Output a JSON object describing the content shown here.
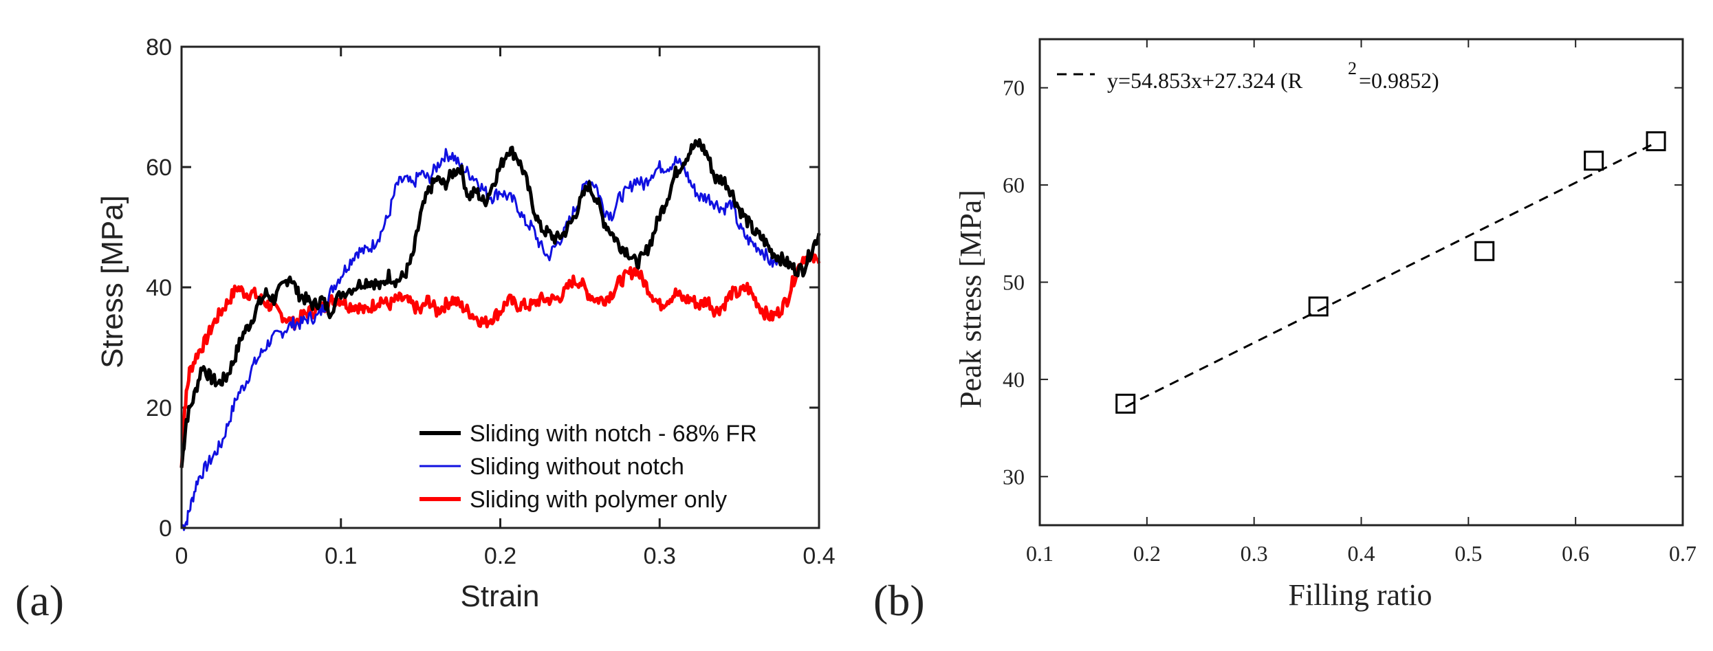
{
  "chart_data": [
    {
      "panel_label": "(a)",
      "type": "line",
      "xlabel": "Strain",
      "ylabel": "Stress [MPa]",
      "xlim": [
        0,
        0.4
      ],
      "ylim": [
        0,
        80
      ],
      "xticks": [
        0,
        0.1,
        0.2,
        0.3,
        0.4
      ],
      "xtick_labels": [
        "0",
        "0.1",
        "0.2",
        "0.3",
        "0.4"
      ],
      "yticks": [
        0,
        20,
        40,
        60,
        80
      ],
      "ytick_labels": [
        "0",
        "20",
        "40",
        "60",
        "80"
      ],
      "grid": false,
      "legend_position": "bottom-right",
      "series": [
        {
          "name": "Sliding with notch - 68% FR",
          "color": "#000000",
          "x": [
            0,
            0.003,
            0.008,
            0.013,
            0.018,
            0.023,
            0.028,
            0.033,
            0.038,
            0.043,
            0.048,
            0.053,
            0.058,
            0.063,
            0.068,
            0.073,
            0.078,
            0.083,
            0.088,
            0.093,
            0.1,
            0.108,
            0.115,
            0.12,
            0.125,
            0.13,
            0.135,
            0.14,
            0.145,
            0.15,
            0.155,
            0.16,
            0.165,
            0.17,
            0.175,
            0.18,
            0.185,
            0.19,
            0.195,
            0.2,
            0.205,
            0.21,
            0.215,
            0.22,
            0.225,
            0.23,
            0.235,
            0.24,
            0.245,
            0.25,
            0.255,
            0.26,
            0.265,
            0.27,
            0.275,
            0.28,
            0.285,
            0.29,
            0.295,
            0.3,
            0.305,
            0.31,
            0.315,
            0.32,
            0.325,
            0.33,
            0.335,
            0.34,
            0.345,
            0.35,
            0.355,
            0.36,
            0.365,
            0.37,
            0.375,
            0.38,
            0.385,
            0.39,
            0.395,
            0.4
          ],
          "y": [
            10,
            18,
            22,
            27,
            25,
            24,
            25,
            28,
            32,
            34,
            37,
            39,
            38,
            40,
            42,
            39,
            38,
            37,
            38,
            36,
            39,
            40,
            41,
            41,
            40,
            42,
            41,
            42,
            45,
            52,
            56,
            58,
            57,
            59,
            60,
            55,
            56,
            54,
            57,
            60,
            63,
            62,
            59,
            54,
            50,
            49,
            48,
            49,
            51,
            54,
            57,
            55,
            51,
            49,
            47,
            46,
            44,
            45,
            48,
            52,
            55,
            59,
            61,
            63,
            64,
            62,
            58,
            58,
            56,
            53,
            51,
            49,
            48,
            46,
            45,
            44,
            43,
            43,
            46,
            49
          ]
        },
        {
          "name": "Sliding without notch",
          "color": "#1010e0",
          "x": [
            0,
            0.003,
            0.006,
            0.01,
            0.015,
            0.02,
            0.025,
            0.03,
            0.035,
            0.04,
            0.045,
            0.05,
            0.055,
            0.06,
            0.065,
            0.07,
            0.075,
            0.08,
            0.085,
            0.09,
            0.095,
            0.1,
            0.105,
            0.11,
            0.115,
            0.12,
            0.125,
            0.13,
            0.135,
            0.14,
            0.145,
            0.15,
            0.155,
            0.16,
            0.165,
            0.17,
            0.175,
            0.18,
            0.185,
            0.19,
            0.195,
            0.2,
            0.205,
            0.21,
            0.215,
            0.22,
            0.225,
            0.23,
            0.235,
            0.24,
            0.245,
            0.25,
            0.255,
            0.26,
            0.265,
            0.27,
            0.275,
            0.28,
            0.285,
            0.29,
            0.295,
            0.3,
            0.305,
            0.31,
            0.315,
            0.32,
            0.325,
            0.33,
            0.335,
            0.34,
            0.345,
            0.35,
            0.355,
            0.36,
            0.365,
            0.37,
            0.375
          ],
          "y": [
            0,
            1,
            4,
            8,
            10,
            12,
            14,
            18,
            22,
            24,
            27,
            29,
            31,
            32,
            33,
            34,
            34,
            35,
            35,
            37,
            40,
            42,
            44,
            46,
            46,
            47,
            49,
            52,
            57,
            58,
            57,
            59,
            58,
            60,
            62,
            62,
            60,
            59,
            58,
            56,
            55,
            56,
            55,
            54,
            51,
            50,
            47,
            45,
            47,
            49,
            52,
            55,
            58,
            57,
            53,
            52,
            55,
            56,
            58,
            57,
            59,
            60,
            60,
            61,
            60,
            57,
            55,
            55,
            54,
            53,
            54,
            50,
            48,
            47,
            46,
            44,
            44
          ]
        },
        {
          "name": "Sliding with polymer only",
          "color": "#ff0000",
          "x": [
            0,
            0.002,
            0.005,
            0.01,
            0.015,
            0.02,
            0.025,
            0.03,
            0.035,
            0.04,
            0.045,
            0.05,
            0.055,
            0.06,
            0.065,
            0.07,
            0.075,
            0.08,
            0.085,
            0.09,
            0.095,
            0.1,
            0.105,
            0.11,
            0.115,
            0.12,
            0.125,
            0.13,
            0.135,
            0.14,
            0.145,
            0.15,
            0.155,
            0.16,
            0.165,
            0.17,
            0.175,
            0.18,
            0.185,
            0.19,
            0.195,
            0.2,
            0.205,
            0.21,
            0.215,
            0.22,
            0.225,
            0.23,
            0.235,
            0.24,
            0.245,
            0.25,
            0.255,
            0.26,
            0.265,
            0.27,
            0.275,
            0.28,
            0.285,
            0.29,
            0.295,
            0.3,
            0.305,
            0.31,
            0.315,
            0.32,
            0.325,
            0.33,
            0.335,
            0.34,
            0.345,
            0.35,
            0.355,
            0.36,
            0.365,
            0.37,
            0.375,
            0.38,
            0.385,
            0.39,
            0.395,
            0.4
          ],
          "y": [
            10,
            20,
            26,
            29,
            31,
            34,
            36,
            38,
            40,
            39,
            39,
            38,
            37,
            36,
            35,
            34,
            35,
            36,
            36,
            37,
            38,
            38,
            37,
            37,
            36,
            37,
            38,
            37,
            38,
            38,
            37,
            36,
            38,
            36,
            37,
            38,
            37,
            36,
            35,
            34,
            35,
            36,
            38,
            37,
            37,
            37,
            38,
            38,
            38,
            39,
            41,
            41,
            39,
            38,
            38,
            39,
            41,
            42,
            43,
            41,
            39,
            37,
            38,
            39,
            38,
            38,
            37,
            38,
            36,
            37,
            39,
            39,
            40,
            38,
            36,
            35,
            36,
            38,
            42,
            45,
            45,
            44
          ]
        }
      ]
    },
    {
      "panel_label": "(b)",
      "type": "scatter",
      "xlabel": "Filling ratio",
      "ylabel": "Peak stress [MPa]",
      "xlim": [
        0.1,
        0.7
      ],
      "ylim": [
        25,
        75
      ],
      "xticks": [
        0.1,
        0.2,
        0.3,
        0.4,
        0.5,
        0.6,
        0.7
      ],
      "xtick_labels": [
        "0.1",
        "0.2",
        "0.3",
        "0.4",
        "0.5",
        "0.6",
        "0.7"
      ],
      "yticks": [
        30,
        40,
        50,
        60,
        70
      ],
      "ytick_labels": [
        "30",
        "40",
        "50",
        "60",
        "70"
      ],
      "grid": false,
      "legend_position": "top-left",
      "points": {
        "x": [
          0.18,
          0.36,
          0.515,
          0.617,
          0.675
        ],
        "y": [
          37.5,
          47.5,
          53.2,
          62.5,
          64.5
        ]
      },
      "fit": {
        "slope": 54.853,
        "intercept": 27.324,
        "x_range": [
          0.18,
          0.675
        ],
        "legend_main": "y=54.853x+27.324 (R",
        "legend_sup": "2",
        "legend_tail": "=0.9852)",
        "color": "#000000"
      }
    }
  ]
}
